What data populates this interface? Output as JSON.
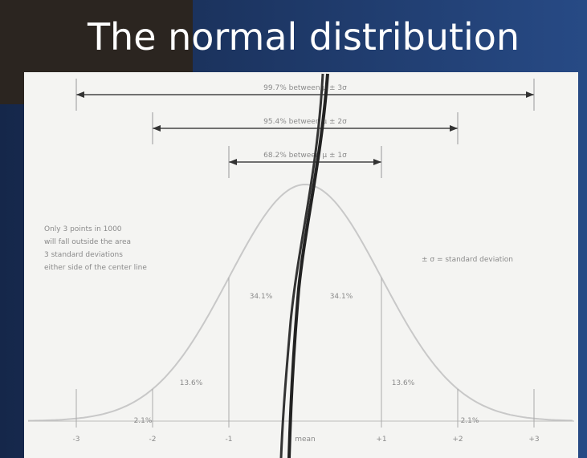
{
  "title": "The normal distribution",
  "ranges": [
    "99.7% between μ ± 3σ",
    "95.4% between μ ± 2σ",
    "68.2% between μ ± 1σ"
  ],
  "areas": [
    "34.1%",
    "34.1%",
    "13.6%",
    "13.6%",
    "2.1%",
    "2.1%"
  ],
  "note": [
    "Only 3 points in 1000",
    "will fall outside the area",
    "3 standard deviations",
    "either side of the center line"
  ],
  "legend": "± σ = standard deviation",
  "axis": [
    "-3",
    "-2",
    "-1",
    "mean",
    "+1",
    "+2",
    "+3"
  ]
}
